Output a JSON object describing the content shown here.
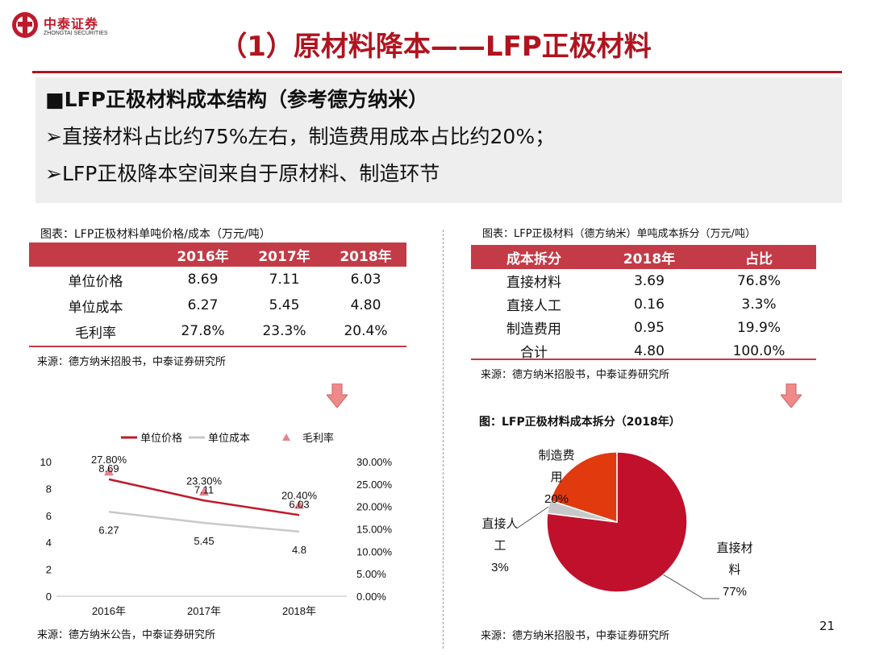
{
  "logo": {
    "cn": "中泰证券",
    "en": "ZHONGTAI SECURITIES"
  },
  "title": "（1）原材料降本——LFP正极材料",
  "summary": {
    "heading": "■LFP正极材料成本结构（参考德方纳米）",
    "bullets": [
      "➢直接材料占比约75%左右，制造费用成本占比约20%；",
      "➢LFP正极降本空间来自于原材料、制造环节"
    ]
  },
  "left_table": {
    "caption": "图表：LFP正极材料单吨价格/成本（万元/吨）",
    "headers": [
      "",
      "2016年",
      "2017年",
      "2018年"
    ],
    "rows": [
      [
        "单位价格",
        "8.69",
        "7.11",
        "6.03"
      ],
      [
        "单位成本",
        "6.27",
        "5.45",
        "4.80"
      ],
      [
        "毛利率",
        "27.8%",
        "23.3%",
        "20.4%"
      ]
    ],
    "source": "来源：德方纳米招股书，中泰证券研究所"
  },
  "right_table": {
    "caption": "图表：LFP正极材料（德方纳米）单吨成本拆分（万元/吨）",
    "headers": [
      "成本拆分",
      "2018年",
      "占比"
    ],
    "rows": [
      [
        "直接材料",
        "3.69",
        "76.8%"
      ],
      [
        "直接人工",
        "0.16",
        "3.3%"
      ],
      [
        "制造费用",
        "0.95",
        "19.9%"
      ],
      [
        "合计",
        "4.80",
        "100.0%"
      ]
    ],
    "source": "来源：德方纳米招股书，中泰证券研究所"
  },
  "colors": {
    "accent": "#b0141f",
    "table_header": "#c33b46",
    "price_line": "#c0192b",
    "cost_line": "#c8c8c8",
    "margin_marker": "#e8828c",
    "arrow": "#ef8a8a",
    "pie_red": "#c0102b",
    "pie_gray": "#c8c8c8",
    "pie_orange": "#e03a0e"
  },
  "chart_data": [
    {
      "type": "line",
      "x": [
        "2016年",
        "2017年",
        "2018年"
      ],
      "ylim": [
        0,
        10
      ],
      "y_ticks": [
        "10",
        "8",
        "6",
        "4",
        "2",
        "0"
      ],
      "y2lim": [
        0,
        0.3
      ],
      "y2_ticks": [
        "30.00%",
        "25.00%",
        "20.00%",
        "15.00%",
        "10.00%",
        "5.00%",
        "0.00%"
      ],
      "legend_position": "top",
      "series": [
        {
          "name": "单位价格",
          "values": [
            8.69,
            7.11,
            6.03
          ],
          "labels": [
            "8.69",
            "7.11",
            "6.03"
          ],
          "axis": "left",
          "style": "line"
        },
        {
          "name": "单位成本",
          "values": [
            6.27,
            5.45,
            4.8
          ],
          "labels": [
            "6.27",
            "5.45",
            "4.8"
          ],
          "axis": "left",
          "style": "line"
        },
        {
          "name": "毛利率",
          "values": [
            0.278,
            0.233,
            0.204
          ],
          "labels": [
            "27.80%",
            "23.30%",
            "20.40%"
          ],
          "axis": "right",
          "style": "triangle"
        }
      ],
      "source": "来源：德方纳米公告，中泰证券研究所"
    },
    {
      "type": "pie",
      "title": "图：LFP正极材料成本拆分（2018年）",
      "slices": [
        {
          "label_lines": [
            "直接材",
            "料",
            "77%"
          ],
          "value": 77
        },
        {
          "label_lines": [
            "直接人",
            "工",
            "3%"
          ],
          "value": 3
        },
        {
          "label_lines": [
            "制造费",
            "用",
            "20%"
          ],
          "value": 20
        }
      ],
      "source": "来源：德方纳米招股书，中泰证券研究所"
    }
  ],
  "page_number": "21"
}
